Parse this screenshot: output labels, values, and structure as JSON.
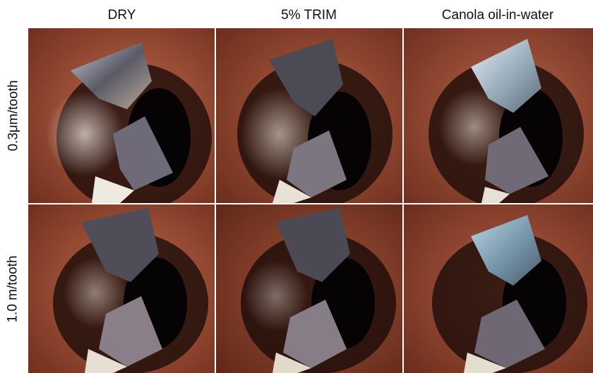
{
  "columns": [
    "DRY",
    "5% TRIM",
    "Canola oil-in-water"
  ],
  "rows": [
    "0.3μm/tooth",
    "1.0 m/tooth"
  ]
}
